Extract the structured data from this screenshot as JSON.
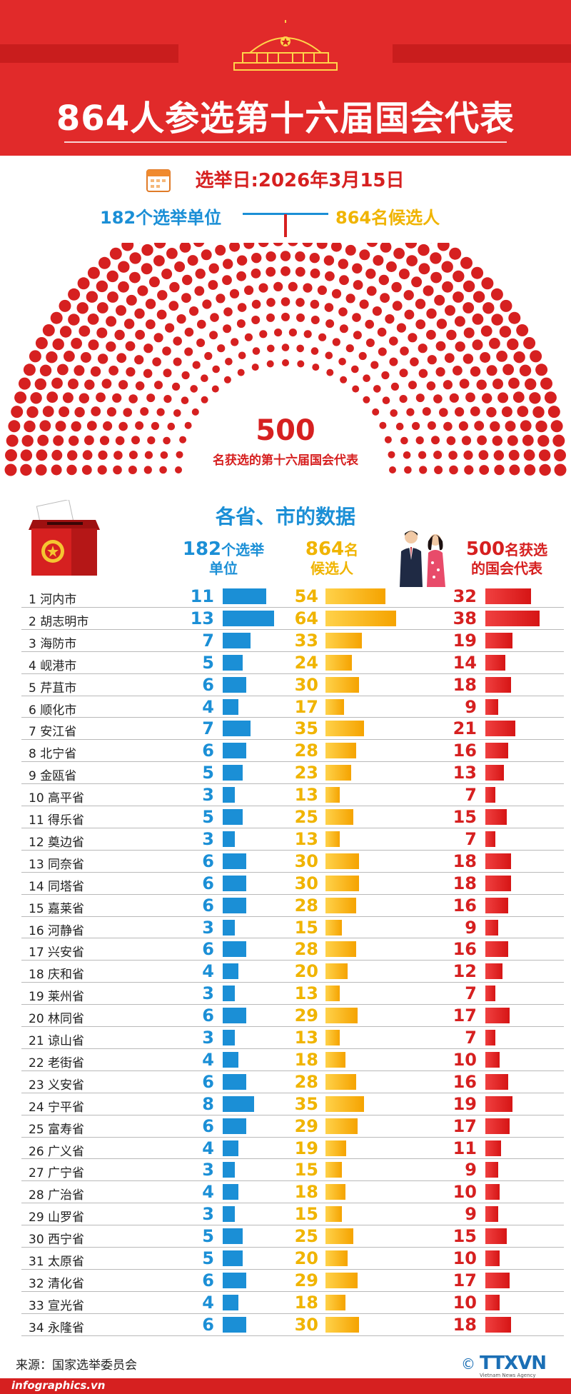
{
  "header": {
    "title": "864人参选第十六届国会代表",
    "election_date": "选举日:2026年3月15日"
  },
  "summary": {
    "units": "182个选举单位",
    "candidates": "864名候选人",
    "seats_number": "500",
    "seats_label": "名获选的第十六届国会代表"
  },
  "table": {
    "section_title": "各省、市的数据",
    "col_units": {
      "num": "182",
      "line1": "个选举",
      "line2": "单位"
    },
    "col_candidates": {
      "num": "864",
      "line1": "名",
      "line2": "候选人"
    },
    "col_reps": {
      "num": "500",
      "line1": "名获选",
      "line2": "的国会代表"
    }
  },
  "chart_data": {
    "type": "bar",
    "title": "864人参选第十六届国会代表",
    "categories": [
      "河内市",
      "胡志明市",
      "海防市",
      "岘港市",
      "芹苴市",
      "顺化市",
      "安江省",
      "北宁省",
      "金瓯省",
      "高平省",
      "得乐省",
      "奠边省",
      "同奈省",
      "同塔省",
      "嘉莱省",
      "河静省",
      "兴安省",
      "庆和省",
      "莱州省",
      "林同省",
      "谅山省",
      "老街省",
      "义安省",
      "宁平省",
      "富寿省",
      "广义省",
      "广宁省",
      "广治省",
      "山罗省",
      "西宁省",
      "太原省",
      "清化省",
      "宣光省",
      "永隆省"
    ],
    "series": [
      {
        "name": "182个选举单位",
        "values": [
          11,
          13,
          7,
          5,
          6,
          4,
          7,
          6,
          5,
          3,
          5,
          3,
          6,
          6,
          6,
          3,
          6,
          4,
          3,
          6,
          3,
          4,
          6,
          8,
          6,
          4,
          3,
          4,
          3,
          5,
          5,
          6,
          4,
          6
        ]
      },
      {
        "name": "864名候选人",
        "values": [
          54,
          64,
          33,
          24,
          30,
          17,
          35,
          28,
          23,
          13,
          25,
          13,
          30,
          30,
          28,
          15,
          28,
          20,
          13,
          29,
          13,
          18,
          28,
          35,
          29,
          19,
          15,
          18,
          15,
          25,
          20,
          29,
          18,
          30
        ]
      },
      {
        "name": "500名获选的国会代表",
        "values": [
          32,
          38,
          19,
          14,
          18,
          9,
          21,
          16,
          13,
          7,
          15,
          7,
          18,
          18,
          16,
          9,
          16,
          12,
          7,
          17,
          7,
          10,
          16,
          19,
          17,
          11,
          9,
          10,
          9,
          15,
          10,
          17,
          10,
          18
        ]
      }
    ],
    "seats_total": 500
  },
  "colors": {
    "red": "#d62020",
    "blue": "#1b8fd6",
    "yellow": "#f0b400"
  },
  "footer": {
    "source": "来源：国家选举委员会",
    "site": "infographics.vn",
    "agency": "TTXVN",
    "agency_sub": "Vietnam News Agency",
    "copyright": "©"
  }
}
